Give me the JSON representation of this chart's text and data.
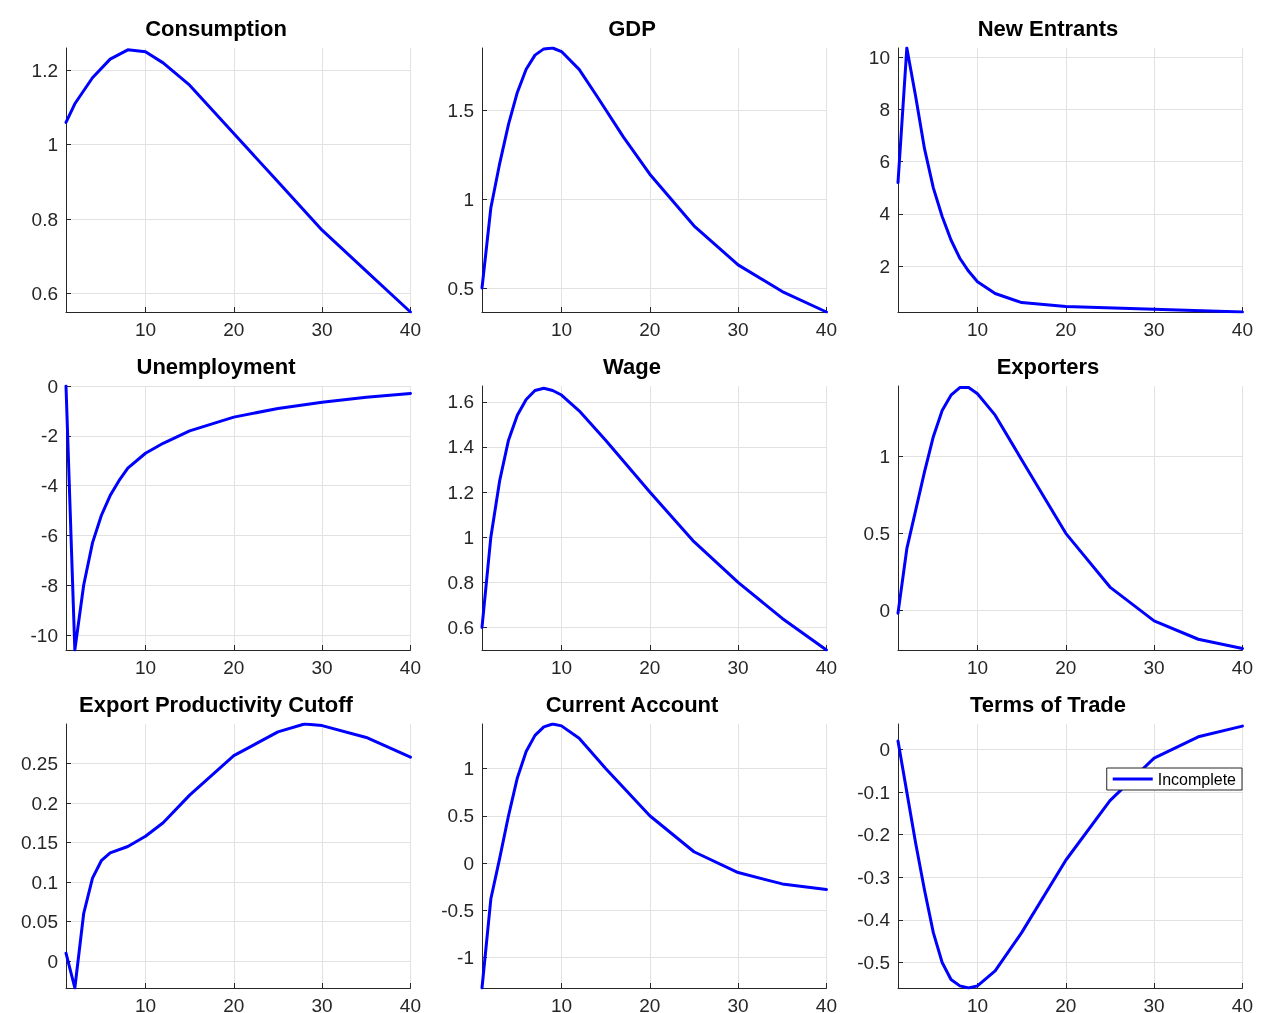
{
  "chart_data": [
    {
      "type": "line",
      "title": "Consumption",
      "xlim": [
        1,
        40
      ],
      "xticks": [
        10,
        20,
        30,
        40
      ],
      "ylim": [
        0.55,
        1.26
      ],
      "yticks": [
        0.6,
        0.8,
        1,
        1.2
      ],
      "grid": true,
      "line_style": "solid",
      "series": [
        {
          "color": "#0000ff",
          "x": [
            1,
            2,
            4,
            6,
            8,
            10,
            12,
            15,
            20,
            25,
            30,
            35,
            40
          ],
          "values": [
            1.06,
            1.11,
            1.18,
            1.23,
            1.255,
            1.25,
            1.22,
            1.16,
            1.03,
            0.9,
            0.77,
            0.66,
            0.55
          ]
        }
      ]
    },
    {
      "type": "line",
      "title": "GDP",
      "xlim": [
        1,
        40
      ],
      "xticks": [
        10,
        20,
        30,
        40
      ],
      "ylim": [
        0.365,
        1.85
      ],
      "yticks": [
        0.5,
        1,
        1.5
      ],
      "grid": true,
      "line_style": "solid",
      "series": [
        {
          "color": "#0000ff",
          "x": [
            1,
            2,
            3,
            4,
            5,
            6,
            7,
            8,
            9,
            10,
            12,
            14,
            17,
            20,
            25,
            30,
            35,
            40
          ],
          "values": [
            0.5,
            0.95,
            1.2,
            1.42,
            1.6,
            1.73,
            1.81,
            1.845,
            1.85,
            1.83,
            1.73,
            1.58,
            1.35,
            1.14,
            0.85,
            0.63,
            0.48,
            0.365
          ]
        }
      ]
    },
    {
      "type": "line",
      "title": "New Entrants",
      "xlim": [
        1,
        40
      ],
      "xticks": [
        10,
        20,
        30,
        40
      ],
      "ylim": [
        0.24,
        10.36
      ],
      "yticks": [
        2,
        4,
        6,
        8,
        10
      ],
      "grid": true,
      "line_style": "solid",
      "series": [
        {
          "color": "#0000ff",
          "x": [
            1,
            2,
            3,
            4,
            5,
            6,
            7,
            8,
            9,
            10,
            12,
            15,
            20,
            30,
            40
          ],
          "values": [
            5.2,
            10.36,
            8.5,
            6.5,
            5,
            3.9,
            3,
            2.3,
            1.8,
            1.4,
            0.95,
            0.6,
            0.45,
            0.35,
            0.24
          ]
        }
      ]
    },
    {
      "type": "line",
      "title": "Unemployment",
      "xlim": [
        1,
        40
      ],
      "xticks": [
        10,
        20,
        30,
        40
      ],
      "ylim": [
        -10.6,
        0
      ],
      "yticks": [
        -10,
        -8,
        -6,
        -4,
        -2,
        0
      ],
      "grid": true,
      "line_style": "solid",
      "series": [
        {
          "color": "#0000ff",
          "x": [
            1,
            2,
            3,
            4,
            5,
            6,
            7,
            8,
            10,
            12,
            15,
            20,
            25,
            30,
            35,
            40
          ],
          "values": [
            0,
            -10.6,
            -8,
            -6.3,
            -5.2,
            -4.4,
            -3.8,
            -3.3,
            -2.7,
            -2.3,
            -1.8,
            -1.25,
            -0.9,
            -0.65,
            -0.45,
            -0.3
          ]
        }
      ]
    },
    {
      "type": "line",
      "title": "Wage",
      "xlim": [
        1,
        40
      ],
      "xticks": [
        10,
        20,
        30,
        40
      ],
      "ylim": [
        0.5,
        1.67
      ],
      "yticks": [
        0.6,
        0.8,
        1,
        1.2,
        1.4,
        1.6
      ],
      "grid": true,
      "line_style": "solid",
      "series": [
        {
          "color": "#0000ff",
          "x": [
            1,
            2,
            3,
            4,
            5,
            6,
            7,
            8,
            9,
            10,
            12,
            15,
            20,
            25,
            30,
            35,
            40
          ],
          "values": [
            0.6,
            1,
            1.25,
            1.43,
            1.54,
            1.61,
            1.65,
            1.66,
            1.65,
            1.63,
            1.56,
            1.43,
            1.2,
            0.98,
            0.8,
            0.64,
            0.5
          ]
        }
      ]
    },
    {
      "type": "line",
      "title": "Exporters",
      "xlim": [
        1,
        40
      ],
      "xticks": [
        10,
        20,
        30,
        40
      ],
      "ylim": [
        -0.26,
        1.46
      ],
      "yticks": [
        0,
        0.5,
        1
      ],
      "grid": true,
      "line_style": "solid",
      "series": [
        {
          "color": "#0000ff",
          "x": [
            1,
            2,
            3,
            4,
            5,
            6,
            7,
            8,
            9,
            10,
            12,
            15,
            20,
            25,
            30,
            35,
            40
          ],
          "values": [
            -0.02,
            0.4,
            0.65,
            0.9,
            1.13,
            1.3,
            1.4,
            1.45,
            1.45,
            1.41,
            1.27,
            0.98,
            0.5,
            0.15,
            -0.07,
            -0.19,
            -0.25
          ]
        }
      ]
    },
    {
      "type": "line",
      "title": "Export Productivity Cutoff",
      "xlim": [
        1,
        40
      ],
      "xticks": [
        10,
        20,
        30,
        40
      ],
      "ylim": [
        -0.034,
        0.3
      ],
      "yticks": [
        0,
        0.05,
        0.1,
        0.15,
        0.2,
        0.25
      ],
      "grid": true,
      "line_style": "solid",
      "series": [
        {
          "color": "#0000ff",
          "x": [
            1,
            2,
            3,
            4,
            5,
            6,
            8,
            10,
            12,
            15,
            20,
            25,
            28,
            30,
            35,
            40
          ],
          "values": [
            0.01,
            -0.034,
            0.06,
            0.105,
            0.127,
            0.137,
            0.145,
            0.158,
            0.175,
            0.21,
            0.26,
            0.29,
            0.3,
            0.298,
            0.283,
            0.258
          ]
        }
      ]
    },
    {
      "type": "line",
      "title": "Current Account",
      "xlim": [
        1,
        40
      ],
      "xticks": [
        10,
        20,
        30,
        40
      ],
      "ylim": [
        -1.32,
        1.47
      ],
      "yticks": [
        -1,
        -0.5,
        0,
        0.5,
        1
      ],
      "grid": true,
      "line_style": "solid",
      "series": [
        {
          "color": "#0000ff",
          "x": [
            1,
            2,
            3,
            4,
            5,
            6,
            7,
            8,
            9,
            10,
            12,
            15,
            20,
            25,
            30,
            35,
            40
          ],
          "values": [
            -1.32,
            -0.38,
            0.05,
            0.5,
            0.9,
            1.18,
            1.35,
            1.44,
            1.47,
            1.45,
            1.32,
            1,
            0.5,
            0.12,
            -0.1,
            -0.22,
            -0.28
          ]
        }
      ]
    },
    {
      "type": "line",
      "title": "Terms of Trade",
      "xlim": [
        1,
        40
      ],
      "xticks": [
        10,
        20,
        30,
        40
      ],
      "ylim": [
        -0.56,
        0.06
      ],
      "yticks": [
        -0.5,
        -0.4,
        -0.3,
        -0.2,
        -0.1,
        0
      ],
      "grid": true,
      "line_style": "solid",
      "legend": "top right",
      "series": [
        {
          "name": "Incomplete",
          "color": "#0000ff",
          "x": [
            1,
            2,
            3,
            4,
            5,
            6,
            7,
            8,
            9,
            10,
            12,
            15,
            20,
            25,
            30,
            35,
            40
          ],
          "values": [
            0.02,
            -0.1,
            -0.22,
            -0.33,
            -0.43,
            -0.5,
            -0.54,
            -0.555,
            -0.56,
            -0.555,
            -0.52,
            -0.43,
            -0.26,
            -0.12,
            -0.02,
            0.03,
            0.055
          ]
        }
      ]
    }
  ]
}
